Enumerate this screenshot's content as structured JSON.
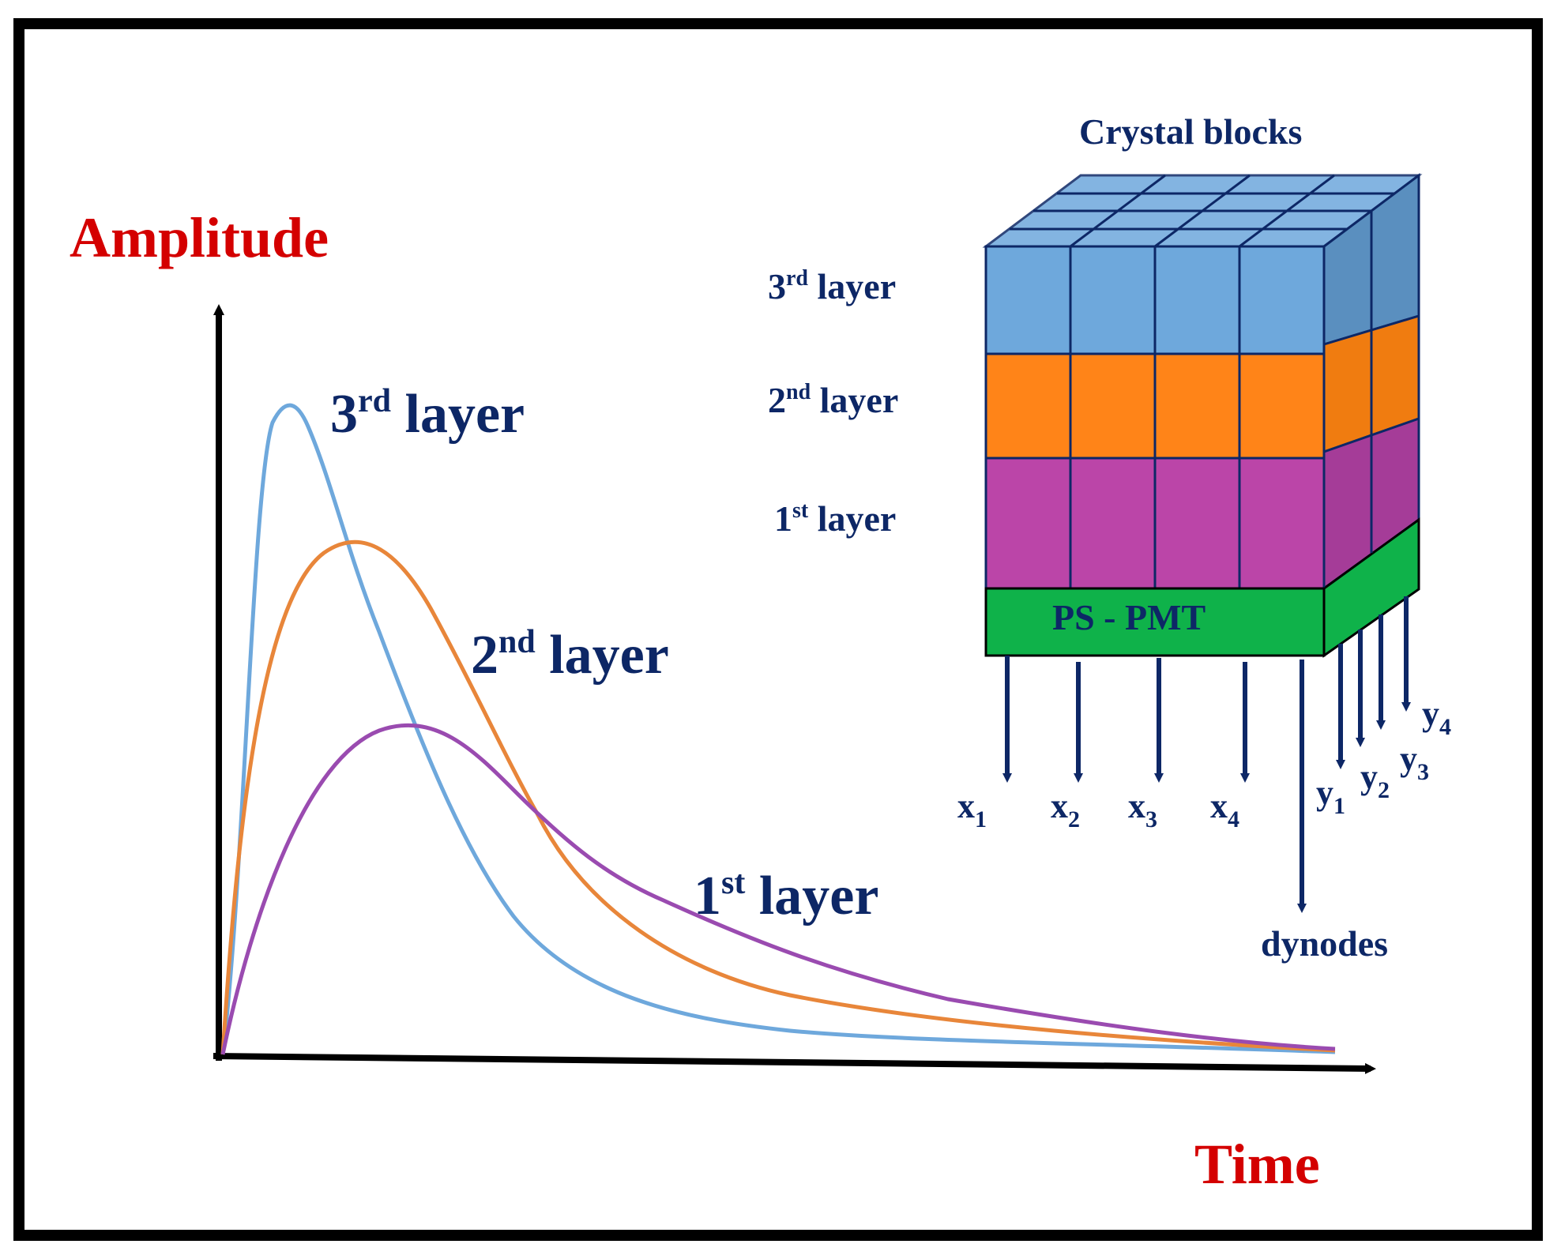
{
  "colors": {
    "frame": "#000000",
    "title_red": "#d40000",
    "navy": "#0d2766",
    "layer3": "#6ea8dc",
    "layer2": "#ff8418",
    "layer1": "#bb45a8",
    "pmt": "#0fb24a"
  },
  "graph": {
    "y_axis_label": "Amplitude",
    "x_axis_label": "Time",
    "curves": [
      {
        "label_main": "3",
        "label_sup": "rd",
        "label_word": " layer",
        "color": "#6ea8dc",
        "icon": "pulse-curve"
      },
      {
        "label_main": "2",
        "label_sup": "nd",
        "label_word": " layer",
        "color": "#e8863a",
        "icon": "pulse-curve"
      },
      {
        "label_main": "1",
        "label_sup": "st",
        "label_word": " layer",
        "color": "#9a4bb0",
        "icon": "pulse-curve"
      }
    ]
  },
  "detector": {
    "title": "Crystal blocks",
    "layer_labels": [
      {
        "main": "3",
        "sup": "rd",
        "word": " layer"
      },
      {
        "main": "2",
        "sup": "nd",
        "word": " layer"
      },
      {
        "main": "1",
        "sup": "st",
        "word": " layer"
      }
    ],
    "pmt_label": "PS - PMT",
    "x_outputs": [
      {
        "base": "x",
        "sub": "1"
      },
      {
        "base": "x",
        "sub": "2"
      },
      {
        "base": "x",
        "sub": "3"
      },
      {
        "base": "x",
        "sub": "4"
      }
    ],
    "y_outputs": [
      {
        "base": "y",
        "sub": "1"
      },
      {
        "base": "y",
        "sub": "2"
      },
      {
        "base": "y",
        "sub": "3"
      },
      {
        "base": "y",
        "sub": "4"
      }
    ],
    "dynode_label": "dynodes"
  }
}
